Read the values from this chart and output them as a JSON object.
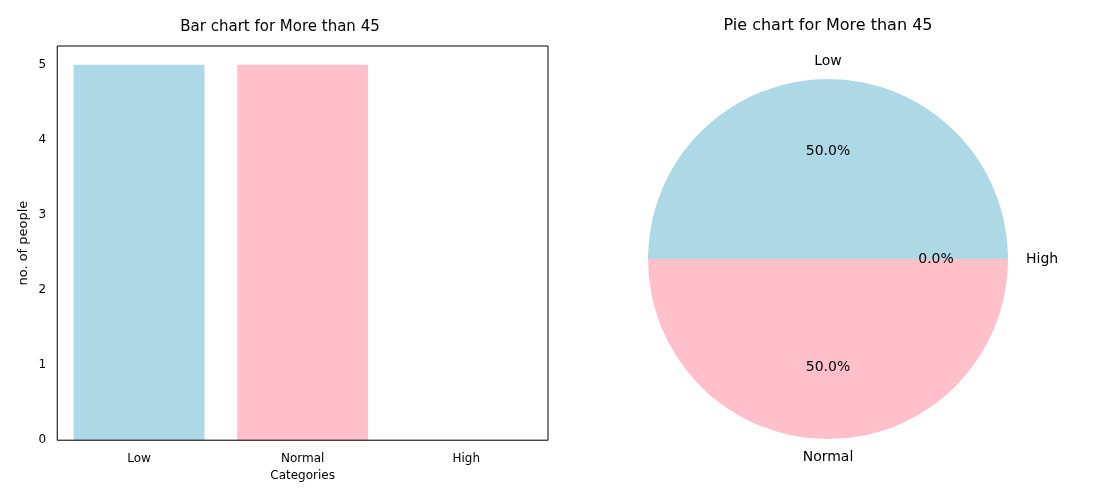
{
  "chart_data": [
    {
      "type": "bar",
      "title": "Bar chart for More than 45",
      "xlabel": "Categories",
      "ylabel": "no. of people",
      "categories": [
        "Low",
        "Normal",
        "High"
      ],
      "values": [
        5,
        5,
        0
      ],
      "colors": [
        "#add8e6",
        "#ffc0cb",
        "#90ee90"
      ],
      "ylim": [
        0,
        5.25
      ],
      "yticks": [
        0,
        1,
        2,
        3,
        4,
        5
      ],
      "grid": false,
      "legend": false
    },
    {
      "type": "pie",
      "title": "Pie chart for More than 45",
      "categories": [
        "Low",
        "Normal",
        "High"
      ],
      "values": [
        50,
        50,
        0
      ],
      "colors": [
        "#add8e6",
        "#ffc0cb",
        "#90ee90"
      ],
      "value_labels": [
        "50.0%",
        "50.0%",
        "0.0%"
      ],
      "legend": false
    }
  ]
}
